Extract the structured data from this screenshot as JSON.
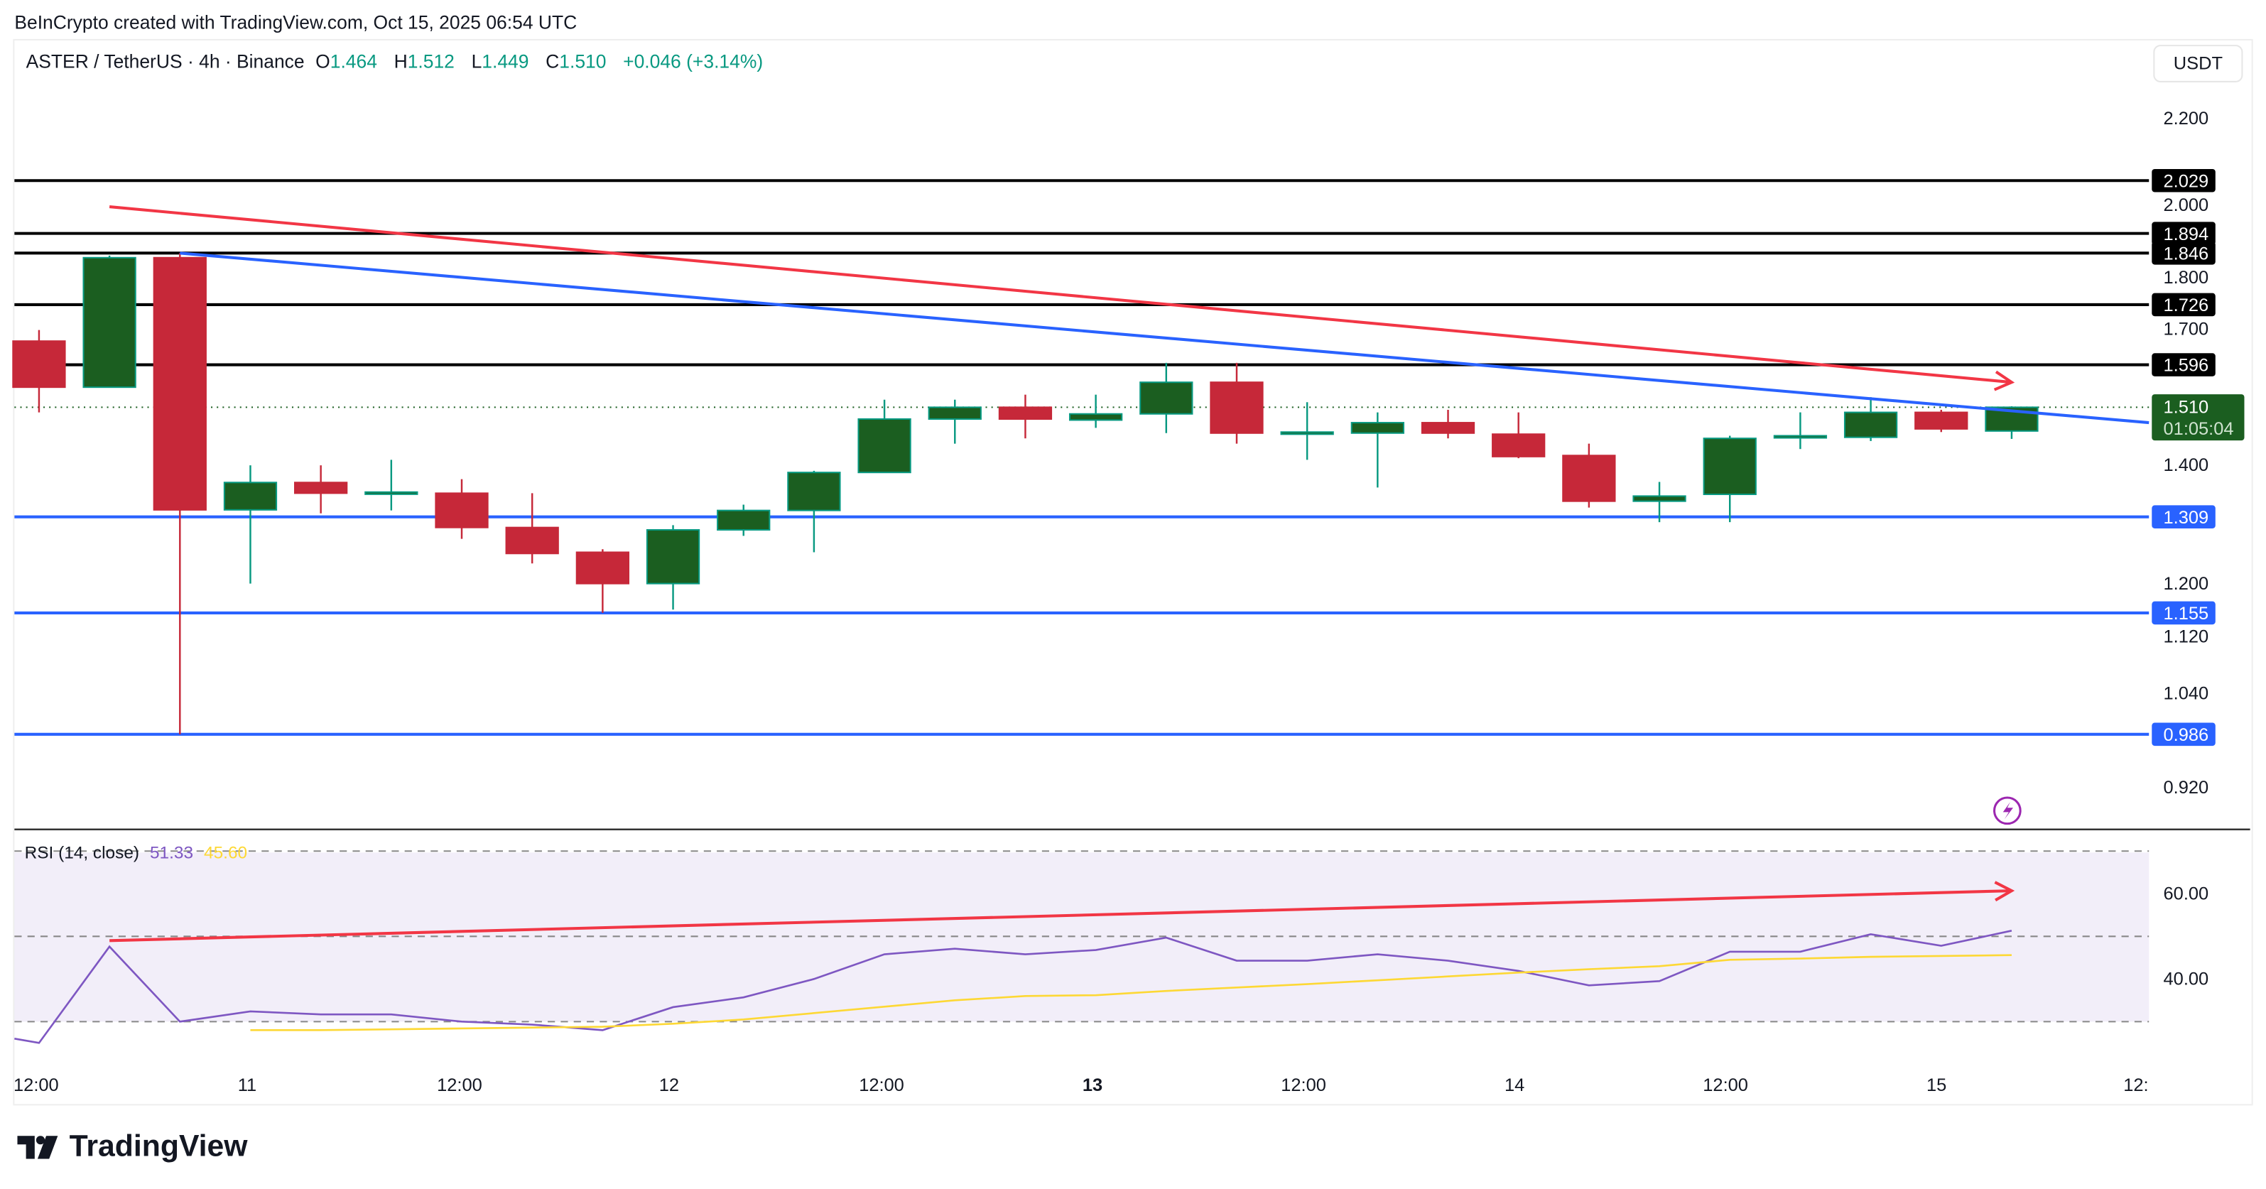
{
  "credit": "BeInCrypto created with TradingView.com, Oct 15, 2025 06:54 UTC",
  "legend": {
    "symbol": "ASTER / TetherUS · 4h · Binance",
    "o_label": "O",
    "o": "1.464",
    "h_label": "H",
    "h": "1.512",
    "l_label": "L",
    "l": "1.449",
    "c_label": "C",
    "c": "1.510",
    "change": "+0.046 (+3.14%)"
  },
  "currency": "USDT",
  "last_price": {
    "price": "1.510",
    "countdown": "01:05:04"
  },
  "rsi": {
    "label": "RSI (14, close)",
    "value": "51.33",
    "ma_value": "45.60"
  },
  "brand": "TradingView",
  "colors": {
    "up": "#1b5e20",
    "down": "#c62839",
    "rsi": "#7e57c2",
    "rsi_ma": "#fdd835",
    "support": "#2962ff",
    "resistance": "#000000",
    "trend_red": "#f23645",
    "trend_blue": "#2962ff"
  },
  "icons": [
    "lightning-icon",
    "tradingview-logo-icon"
  ],
  "chart_data": [
    {
      "type": "candlestick",
      "scale": "log",
      "ylim": [
        0.88,
        2.3
      ],
      "y_ticks": [
        "2.200",
        "2.000",
        "1.800",
        "1.700",
        "1.400",
        "1.200",
        "1.120",
        "1.040",
        "0.920"
      ],
      "x_ticks": [
        "12:00",
        "11",
        "12:00",
        "12",
        "12:00",
        "13",
        "12:00",
        "14",
        "12:00",
        "15",
        "12:"
      ],
      "ohlc": [
        [
          1.646,
          1.55,
          1.67,
          1.5
        ],
        [
          1.55,
          1.835,
          1.84,
          1.55
        ],
        [
          1.835,
          1.321,
          1.846,
          0.986
        ],
        [
          1.321,
          1.369,
          1.4,
          1.2
        ],
        [
          1.369,
          1.35,
          1.4,
          1.315
        ],
        [
          1.35,
          1.352,
          1.41,
          1.32
        ],
        [
          1.35,
          1.291,
          1.375,
          1.272
        ],
        [
          1.291,
          1.248,
          1.35,
          1.232
        ],
        [
          1.25,
          1.2,
          1.255,
          1.155
        ],
        [
          1.2,
          1.287,
          1.295,
          1.16
        ],
        [
          1.287,
          1.32,
          1.33,
          1.277
        ],
        [
          1.32,
          1.387,
          1.39,
          1.25
        ],
        [
          1.387,
          1.487,
          1.525,
          1.387
        ],
        [
          1.487,
          1.51,
          1.525,
          1.44
        ],
        [
          1.51,
          1.487,
          1.535,
          1.45
        ],
        [
          1.485,
          1.497,
          1.535,
          1.47
        ],
        [
          1.497,
          1.56,
          1.6,
          1.46
        ],
        [
          1.56,
          1.46,
          1.6,
          1.44
        ],
        [
          1.46,
          1.462,
          1.52,
          1.41
        ],
        [
          1.46,
          1.48,
          1.5,
          1.36
        ],
        [
          1.48,
          1.46,
          1.505,
          1.45
        ],
        [
          1.458,
          1.416,
          1.5,
          1.413
        ],
        [
          1.418,
          1.336,
          1.44,
          1.325
        ],
        [
          1.336,
          1.345,
          1.37,
          1.3
        ],
        [
          1.348,
          1.45,
          1.455,
          1.3
        ],
        [
          1.452,
          1.455,
          1.5,
          1.43
        ],
        [
          1.452,
          1.5,
          1.53,
          1.445
        ],
        [
          1.5,
          1.468,
          1.505,
          1.462
        ],
        [
          1.464,
          1.51,
          1.512,
          1.449
        ]
      ],
      "resistance_levels": [
        "2.029",
        "1.894",
        "1.846",
        "1.726",
        "1.596"
      ],
      "support_levels": [
        "1.309",
        "1.155",
        "0.986"
      ],
      "trendlines": [
        {
          "color": "red",
          "from": [
            1,
            1.961
          ],
          "to": [
            28,
            1.56
          ],
          "arrow": true
        },
        {
          "color": "blue",
          "from": [
            2,
            1.846
          ],
          "to": [
            30,
            1.48
          ],
          "arrow": false
        }
      ]
    },
    {
      "type": "line",
      "title": "RSI (14, close)",
      "ylim": [
        20,
        75
      ],
      "bands": [
        30,
        50,
        70
      ],
      "y_ticks": [
        "60.00",
        "40.00"
      ],
      "series": [
        {
          "name": "RSI",
          "start_index": 0,
          "values": [
            25,
            47.6,
            30,
            32.4,
            31.7,
            31.7,
            30,
            29.3,
            28,
            33.4,
            35.7,
            40,
            45.8,
            47.1,
            45.8,
            46.8,
            49.7,
            44.3,
            44.3,
            45.8,
            44.3,
            41.9,
            38.5,
            39.5,
            46.4,
            46.4,
            50.5,
            47.8,
            51.33
          ]
        },
        {
          "name": "RSI MA",
          "start_index": 3,
          "values": [
            28,
            28,
            28.2,
            28.4,
            28.6,
            28.8,
            29.5,
            30.5,
            32,
            33.5,
            35,
            36,
            36.2,
            37.2,
            38,
            38.8,
            39.7,
            40.6,
            41.5,
            42.3,
            43,
            44.5,
            44.8,
            45.2,
            45.4,
            45.6
          ]
        }
      ],
      "trendline": {
        "from": [
          1,
          49
        ],
        "to": [
          28,
          60.7
        ],
        "arrow": true
      }
    }
  ]
}
